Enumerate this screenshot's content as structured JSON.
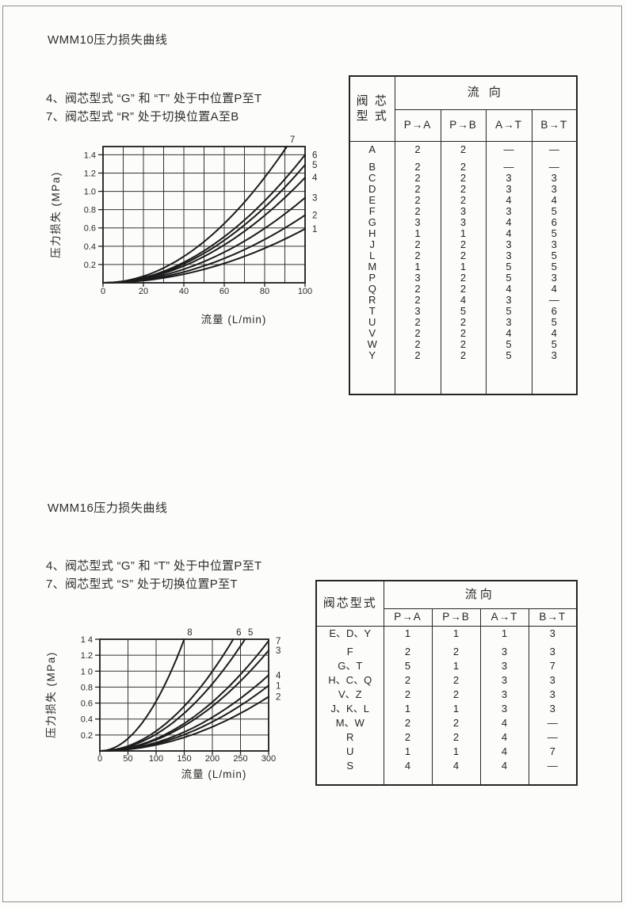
{
  "ink_color": "#2a2a2a",
  "border_color": "#8e8e8e",
  "sections": [
    {
      "title": "WMM10压力损失曲线",
      "notes": [
        "4、阀芯型式 “G” 和 “T” 处于中位置P至T",
        "7、阀芯型式 “R” 处于切换位置A至B"
      ],
      "table": {
        "spool_header_lines": [
          "阀 芯",
          "型 式"
        ],
        "flow_header": "流 向",
        "flow_columns": [
          "P→A",
          "P→B",
          "A→T",
          "B→T"
        ],
        "rows": [
          {
            "type": "A",
            "values": [
              "2",
              "2",
              "—",
              "—"
            ]
          },
          {
            "type": "B",
            "values": [
              "2",
              "2",
              "—",
              "—"
            ]
          },
          {
            "type": "C",
            "values": [
              "2",
              "2",
              "3",
              "3"
            ]
          },
          {
            "type": "D",
            "values": [
              "2",
              "2",
              "3",
              "3"
            ]
          },
          {
            "type": "E",
            "values": [
              "2",
              "2",
              "4",
              "4"
            ]
          },
          {
            "type": "F",
            "values": [
              "2",
              "3",
              "3",
              "5"
            ]
          },
          {
            "type": "G",
            "values": [
              "3",
              "3",
              "4",
              "6"
            ]
          },
          {
            "type": "H",
            "values": [
              "1",
              "1",
              "4",
              "5"
            ]
          },
          {
            "type": "J",
            "values": [
              "2",
              "2",
              "3",
              "3"
            ]
          },
          {
            "type": "L",
            "values": [
              "2",
              "2",
              "3",
              "5"
            ]
          },
          {
            "type": "M",
            "values": [
              "1",
              "1",
              "5",
              "5"
            ]
          },
          {
            "type": "P",
            "values": [
              "3",
              "2",
              "5",
              "3"
            ]
          },
          {
            "type": "Q",
            "values": [
              "2",
              "2",
              "4",
              "4"
            ]
          },
          {
            "type": "R",
            "values": [
              "2",
              "4",
              "3",
              "—"
            ]
          },
          {
            "type": "T",
            "values": [
              "3",
              "5",
              "5",
              "6"
            ]
          },
          {
            "type": "U",
            "values": [
              "2",
              "2",
              "3",
              "5"
            ]
          },
          {
            "type": "V",
            "values": [
              "2",
              "2",
              "4",
              "4"
            ]
          },
          {
            "type": "W",
            "values": [
              "2",
              "2",
              "5",
              "5"
            ]
          },
          {
            "type": "Y",
            "values": [
              "2",
              "2",
              "5",
              "3"
            ]
          }
        ]
      }
    },
    {
      "title": "WMM16压力损失曲线",
      "notes": [
        "4、阀芯型式 “G” 和 “T” 处于中位置P至T",
        "7、阀芯型式 “S” 处于切换位置P至T"
      ],
      "table": {
        "spool_header_lines": [
          "阀芯型式"
        ],
        "flow_header": "流向",
        "flow_columns": [
          "P→A",
          "P→B",
          "A→T",
          "B→T"
        ],
        "rows": [
          {
            "type": "E、D、Y",
            "values": [
              "1",
              "1",
              "1",
              "3"
            ]
          },
          {
            "type": "F",
            "values": [
              "2",
              "2",
              "3",
              "3"
            ]
          },
          {
            "type": "G、T",
            "values": [
              "5",
              "1",
              "3",
              "7"
            ]
          },
          {
            "type": "H、C、Q",
            "values": [
              "2",
              "2",
              "3",
              "3"
            ]
          },
          {
            "type": "V、Z",
            "values": [
              "2",
              "2",
              "3",
              "3"
            ]
          },
          {
            "type": "J、K、L",
            "values": [
              "1",
              "1",
              "3",
              "3"
            ]
          },
          {
            "type": "M、W",
            "values": [
              "2",
              "2",
              "4",
              "—"
            ]
          },
          {
            "type": "R",
            "values": [
              "2",
              "2",
              "4",
              "—"
            ]
          },
          {
            "type": "U",
            "values": [
              "1",
              "1",
              "4",
              "7"
            ]
          },
          {
            "type": "S",
            "values": [
              "4",
              "4",
              "4",
              "—"
            ]
          }
        ]
      }
    }
  ],
  "chart_data": [
    {
      "type": "line",
      "title": "WMM10压力损失曲线",
      "xlabel": "流量 (L/min)",
      "ylabel": "压力损失 (MPa)",
      "xlim": [
        0,
        100
      ],
      "ylim": [
        0,
        1.49
      ],
      "xticks": [
        0,
        20,
        40,
        60,
        80,
        100
      ],
      "yticks": [
        0.2,
        0.4,
        0.6,
        0.8,
        1.0,
        1.2,
        1.4
      ],
      "ytick_labels": [
        "0.2",
        "0.4",
        "0.6",
        "0.8",
        "1.0",
        "1.2",
        "1.4"
      ],
      "x_grid_step": 10,
      "grid": true,
      "curve_shape": "quadratic-from-origin",
      "curves": [
        {
          "label": "7",
          "end_x": 91,
          "end_y": 1.49,
          "exit": "top"
        },
        {
          "label": "6",
          "end_x": 100,
          "end_y": 1.4,
          "exit": "right"
        },
        {
          "label": "5",
          "end_x": 100,
          "end_y": 1.29,
          "exit": "right"
        },
        {
          "label": "4",
          "end_x": 100,
          "end_y": 1.15,
          "exit": "right"
        },
        {
          "label": "3",
          "end_x": 100,
          "end_y": 0.93,
          "exit": "right"
        },
        {
          "label": "2",
          "end_x": 100,
          "end_y": 0.74,
          "exit": "right"
        },
        {
          "label": "1",
          "end_x": 100,
          "end_y": 0.59,
          "exit": "right"
        }
      ]
    },
    {
      "type": "line",
      "title": "WMM16压力损失曲线",
      "xlabel": "流量 (L/min)",
      "ylabel": "压力损失 (MPa)",
      "xlim": [
        0,
        300
      ],
      "ylim": [
        0,
        1.4
      ],
      "xticks": [
        0,
        50,
        100,
        150,
        200,
        250,
        300
      ],
      "yticks": [
        0.2,
        0.4,
        0.6,
        0.8,
        1.0,
        1.2,
        1.4
      ],
      "ytick_labels": [
        "0.2",
        "0.4",
        "0.6",
        "0.8",
        "1 0",
        "1.2",
        "1 4"
      ],
      "x_grid_step": 50,
      "grid": true,
      "curve_shape": "quadratic-from-origin",
      "curves": [
        {
          "label": "8",
          "end_x": 150,
          "end_y": 1.4,
          "exit": "top"
        },
        {
          "label": "6",
          "end_x": 237,
          "end_y": 1.4,
          "exit": "top"
        },
        {
          "label": "5",
          "end_x": 258,
          "end_y": 1.4,
          "exit": "top"
        },
        {
          "label": "7",
          "end_x": 300,
          "end_y": 1.38,
          "exit": "right"
        },
        {
          "label": "3",
          "end_x": 300,
          "end_y": 1.26,
          "exit": "right"
        },
        {
          "label": "4",
          "end_x": 300,
          "end_y": 0.95,
          "exit": "right"
        },
        {
          "label": "1",
          "end_x": 300,
          "end_y": 0.82,
          "exit": "right"
        },
        {
          "label": "2",
          "end_x": 300,
          "end_y": 0.68,
          "exit": "right"
        }
      ]
    }
  ]
}
